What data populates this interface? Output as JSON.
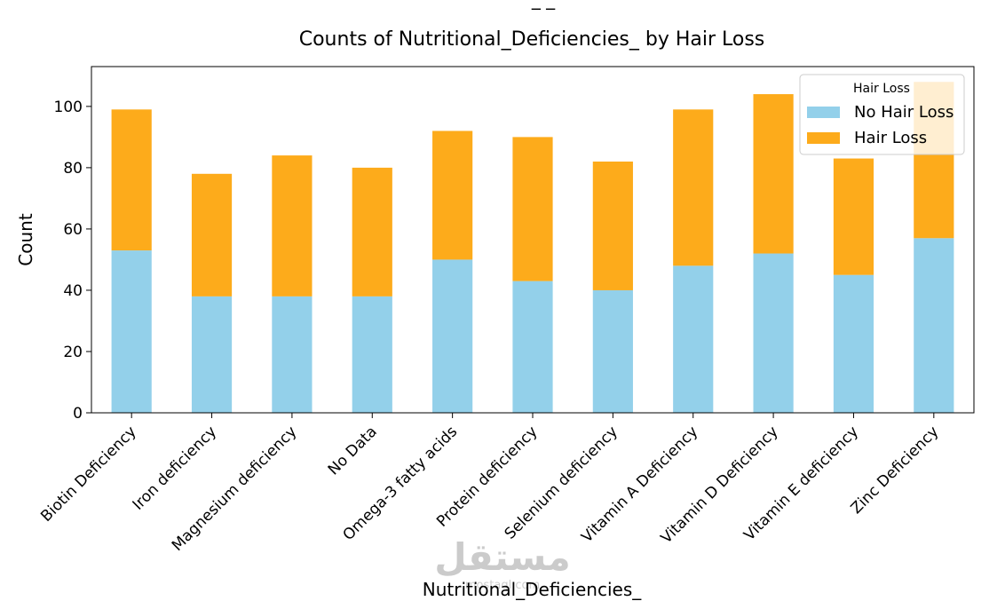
{
  "chart_data": {
    "type": "bar",
    "stacked": true,
    "title": "Counts of Nutritional_Deficiencies_ by Hair Loss",
    "xlabel": "Nutritional_Deficiencies_",
    "ylabel": "Count",
    "ylim": [
      0,
      113
    ],
    "yticks": [
      0,
      20,
      40,
      60,
      80,
      100
    ],
    "categories": [
      "Biotin Deficiency",
      "Iron deficiency",
      "Magnesium deficiency",
      "No Data",
      "Omega-3 fatty acids",
      "Protein deficiency",
      "Selenium deficiency",
      "Vitamin A Deficiency",
      "Vitamin D Deficiency",
      "Vitamin E deficiency",
      "Zinc Deficiency"
    ],
    "series": [
      {
        "name": "No Hair Loss",
        "color": "#93d0ea",
        "values": [
          53,
          38,
          38,
          38,
          50,
          43,
          40,
          48,
          52,
          45,
          57
        ]
      },
      {
        "name": "Hair Loss",
        "color": "#fdab1b",
        "values": [
          46,
          40,
          46,
          42,
          42,
          47,
          42,
          51,
          52,
          38,
          51
        ]
      }
    ],
    "legend": {
      "title": "Hair Loss",
      "placement": "top-right"
    },
    "grid": false
  },
  "watermark": {
    "text": "مستقل",
    "subtext": "mostaql.com"
  }
}
